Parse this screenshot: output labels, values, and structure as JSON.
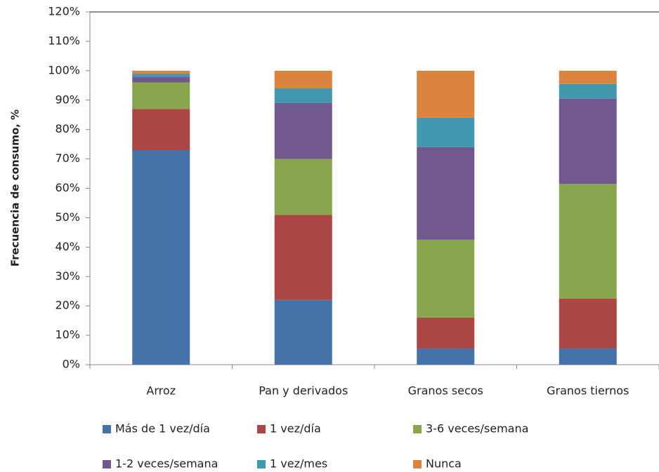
{
  "chart_data": {
    "type": "stacked_bar",
    "y_label": "Frecuencia de consumo, %",
    "categories": [
      "Arroz",
      "Pan y derivados",
      "Granos secos",
      "Granos tiernos"
    ],
    "series": [
      {
        "name": "Más de 1 vez/día",
        "color": "#4572a7",
        "values": [
          73,
          22,
          5.5,
          5.5
        ]
      },
      {
        "name": "1 vez/día",
        "color": "#aa4643",
        "values": [
          14,
          29,
          10.5,
          17
        ]
      },
      {
        "name": "3-6 veces/semana",
        "color": "#89a54e",
        "values": [
          9,
          19,
          26.5,
          39
        ]
      },
      {
        "name": "1-2 veces/semana",
        "color": "#71588f",
        "values": [
          2,
          19,
          31.5,
          29
        ]
      },
      {
        "name": "1 vez/mes",
        "color": "#4198af",
        "values": [
          1,
          5,
          10,
          5
        ]
      },
      {
        "name": "Nunca",
        "color": "#db843d",
        "values": [
          1,
          6,
          16,
          4.5
        ]
      }
    ],
    "ylim": [
      0,
      120
    ],
    "yticks": [
      {
        "value": 0,
        "label": "0%"
      },
      {
        "value": 10,
        "label": "10%"
      },
      {
        "value": 20,
        "label": "20%"
      },
      {
        "value": 30,
        "label": "30%"
      },
      {
        "value": 40,
        "label": "40%"
      },
      {
        "value": 50,
        "label": "50%"
      },
      {
        "value": 60,
        "label": "60%"
      },
      {
        "value": 70,
        "label": "70%"
      },
      {
        "value": 80,
        "label": "80%"
      },
      {
        "value": 90,
        "label": "90%"
      },
      {
        "value": 100,
        "label": "100%"
      },
      {
        "value": 110,
        "label": "110%"
      },
      {
        "value": 120,
        "label": "120%"
      }
    ],
    "legend": "bottom"
  }
}
